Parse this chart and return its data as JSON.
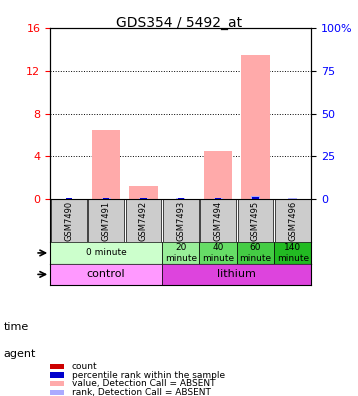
{
  "title": "GDS354 / 5492_at",
  "samples": [
    "GSM7490",
    "GSM7491",
    "GSM7492",
    "GSM7493",
    "GSM7494",
    "GSM7495",
    "GSM7496"
  ],
  "ylim_left": [
    0,
    16
  ],
  "ylim_right": [
    0,
    100
  ],
  "yticks_left": [
    0,
    4,
    8,
    12,
    16
  ],
  "yticks_right": [
    0,
    25,
    50,
    75,
    100
  ],
  "count_values": [
    0,
    0,
    0,
    0,
    0,
    0,
    0
  ],
  "rank_values": [
    0.5,
    0.7,
    0.5,
    0.55,
    0.65,
    1.5,
    0.45
  ],
  "absent_value_bars": [
    0,
    6.5,
    1.2,
    0,
    4.5,
    13.5,
    0
  ],
  "absent_rank_bars": [
    0.4,
    0.8,
    0.5,
    0.6,
    0.7,
    1.8,
    0.5
  ],
  "time_labels": [
    "0 minute",
    "0 minute",
    "0 minute",
    "20\nminute",
    "40\nminute",
    "60\nminute",
    "140\nminute"
  ],
  "time_groups": [
    {
      "label": "0 minute",
      "span": [
        0,
        3
      ],
      "color": "#ccffcc"
    },
    {
      "label": "20\nminute",
      "span": [
        3,
        4
      ],
      "color": "#99ee99"
    },
    {
      "label": "40\nminute",
      "span": [
        4,
        5
      ],
      "color": "#66dd66"
    },
    {
      "label": "60\nminute",
      "span": [
        5,
        6
      ],
      "color": "#44cc44"
    },
    {
      "label": "140\nminute",
      "span": [
        6,
        7
      ],
      "color": "#22bb22"
    }
  ],
  "agent_groups": [
    {
      "label": "control",
      "span": [
        0,
        3
      ],
      "color": "#ff99ff"
    },
    {
      "label": "lithium",
      "span": [
        3,
        7
      ],
      "color": "#dd44dd"
    }
  ],
  "bar_width": 0.35,
  "count_color": "#cc0000",
  "rank_color": "#0000cc",
  "absent_value_color": "#ffaaaa",
  "absent_rank_color": "#aaaaff",
  "sample_bg_color": "#cccccc",
  "legend_items": [
    {
      "color": "#cc0000",
      "label": "count"
    },
    {
      "color": "#0000cc",
      "label": "percentile rank within the sample"
    },
    {
      "color": "#ffaaaa",
      "label": "value, Detection Call = ABSENT"
    },
    {
      "color": "#aaaaff",
      "label": "rank, Detection Call = ABSENT"
    }
  ]
}
